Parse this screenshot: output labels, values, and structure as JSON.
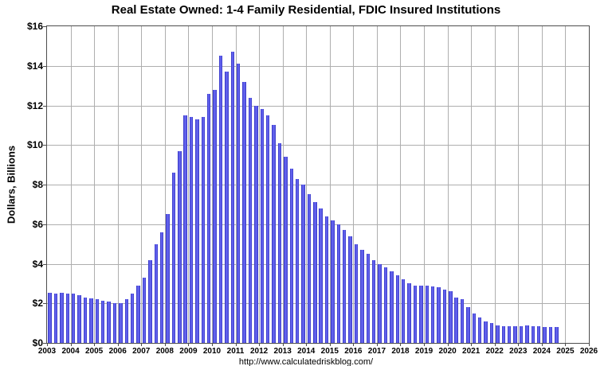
{
  "chart_data": {
    "type": "bar",
    "title": "Real Estate Owned: 1-4 Family Residential, FDIC Insured Institutions",
    "ylabel": "Dollars, Billions",
    "source": "http://www.calculatedriskblog.com/",
    "ylim": [
      0,
      16
    ],
    "y_step": 2,
    "y_tick_prefix": "$",
    "xlim": [
      2003,
      2026
    ],
    "x_tick_years": [
      2003,
      2004,
      2005,
      2006,
      2007,
      2008,
      2009,
      2010,
      2011,
      2012,
      2013,
      2014,
      2015,
      2016,
      2017,
      2018,
      2019,
      2020,
      2021,
      2022,
      2023,
      2024,
      2025,
      2026
    ],
    "legend": "none",
    "grid": "on",
    "bar_color": "#6363ee",
    "bar_edge_color": "#3030bf",
    "categories": [
      "2003 Q1",
      "2003 Q2",
      "2003 Q3",
      "2003 Q4",
      "2004 Q1",
      "2004 Q2",
      "2004 Q3",
      "2004 Q4",
      "2005 Q1",
      "2005 Q2",
      "2005 Q3",
      "2005 Q4",
      "2006 Q1",
      "2006 Q2",
      "2006 Q3",
      "2006 Q4",
      "2007 Q1",
      "2007 Q2",
      "2007 Q3",
      "2007 Q4",
      "2008 Q1",
      "2008 Q2",
      "2008 Q3",
      "2008 Q4",
      "2009 Q1",
      "2009 Q2",
      "2009 Q3",
      "2009 Q4",
      "2010 Q1",
      "2010 Q2",
      "2010 Q3",
      "2010 Q4",
      "2011 Q1",
      "2011 Q2",
      "2011 Q3",
      "2011 Q4",
      "2012 Q1",
      "2012 Q2",
      "2012 Q3",
      "2012 Q4",
      "2013 Q1",
      "2013 Q2",
      "2013 Q3",
      "2013 Q4",
      "2014 Q1",
      "2014 Q2",
      "2014 Q3",
      "2014 Q4",
      "2015 Q1",
      "2015 Q2",
      "2015 Q3",
      "2015 Q4",
      "2016 Q1",
      "2016 Q2",
      "2016 Q3",
      "2016 Q4",
      "2017 Q1",
      "2017 Q2",
      "2017 Q3",
      "2017 Q4",
      "2018 Q1",
      "2018 Q2",
      "2018 Q3",
      "2018 Q4",
      "2019 Q1",
      "2019 Q2",
      "2019 Q3",
      "2019 Q4",
      "2020 Q1",
      "2020 Q2",
      "2020 Q3",
      "2020 Q4",
      "2021 Q1",
      "2021 Q2",
      "2021 Q3",
      "2021 Q4",
      "2022 Q1",
      "2022 Q2",
      "2022 Q3",
      "2022 Q4",
      "2023 Q1",
      "2023 Q2",
      "2023 Q3",
      "2023 Q4",
      "2024 Q1",
      "2024 Q2",
      "2024 Q3"
    ],
    "values": [
      2.55,
      2.5,
      2.55,
      2.5,
      2.5,
      2.4,
      2.3,
      2.25,
      2.2,
      2.15,
      2.1,
      2.0,
      2.0,
      2.2,
      2.5,
      2.9,
      3.3,
      4.2,
      5.0,
      5.6,
      6.5,
      8.6,
      9.7,
      11.5,
      11.4,
      11.3,
      11.4,
      12.6,
      12.8,
      14.5,
      13.7,
      14.7,
      14.1,
      13.2,
      12.4,
      12.0,
      11.8,
      11.5,
      11.0,
      10.1,
      9.4,
      8.8,
      8.3,
      8.0,
      7.5,
      7.1,
      6.8,
      6.4,
      6.2,
      6.0,
      5.7,
      5.4,
      5.0,
      4.7,
      4.5,
      4.2,
      4.0,
      3.8,
      3.6,
      3.4,
      3.2,
      3.0,
      2.9,
      2.9,
      2.9,
      2.85,
      2.8,
      2.7,
      2.6,
      2.3,
      2.2,
      1.8,
      1.5,
      1.3,
      1.1,
      1.0,
      0.9,
      0.85,
      0.85,
      0.85,
      0.85,
      0.9,
      0.85,
      0.85,
      0.8,
      0.8,
      0.8
    ]
  }
}
